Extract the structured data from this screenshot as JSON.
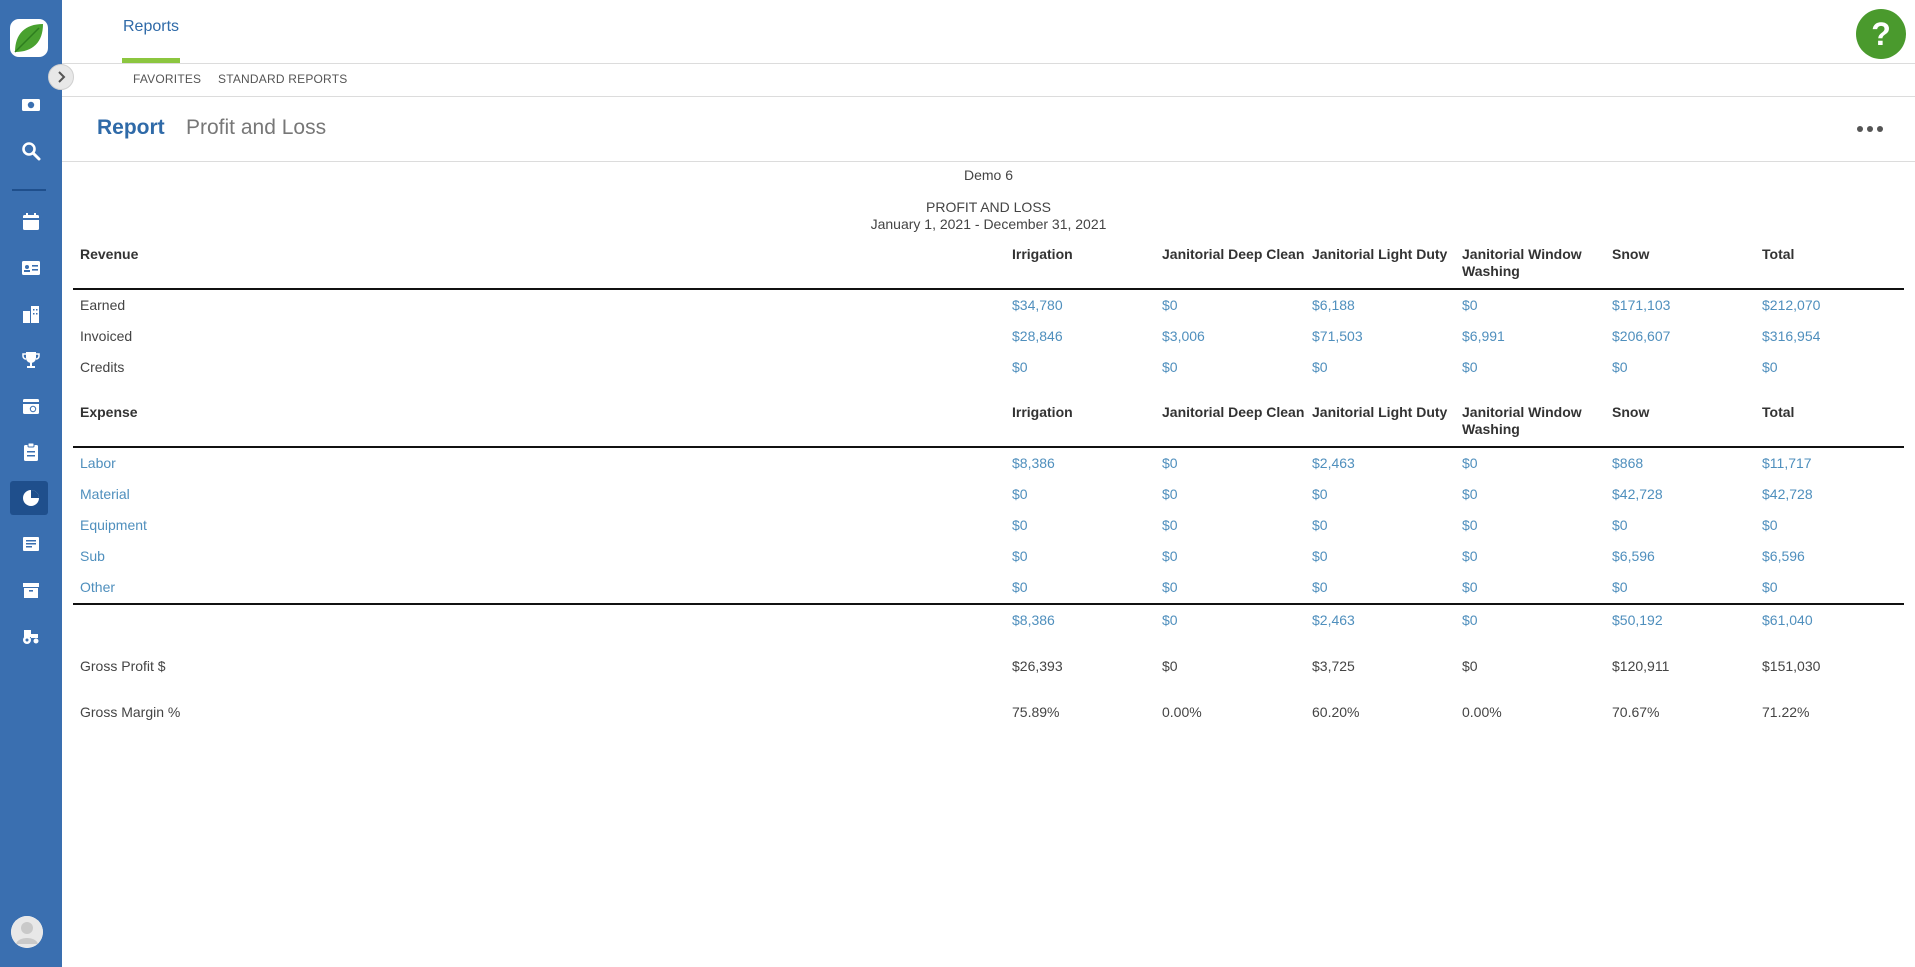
{
  "app": {
    "top_tab": "Reports",
    "help_label": "?"
  },
  "sub_nav": {
    "favorites": "FAVORITES",
    "standard_reports": "STANDARD REPORTS"
  },
  "report_header": {
    "label": "Report",
    "name": "Profit and Loss"
  },
  "report": {
    "company": "Demo 6",
    "title": "PROFIT AND LOSS",
    "dates": "January 1, 2021 - December 31, 2021",
    "columns": [
      "Irrigation",
      "Janitorial Deep Clean",
      "Janitorial Light Duty",
      "Janitorial Window Washing",
      "Snow",
      "Total"
    ],
    "revenue": {
      "heading": "Revenue",
      "rows": [
        {
          "label": "Earned",
          "values": [
            "$34,780",
            "$0",
            "$6,188",
            "$0",
            "$171,103",
            "$212,070"
          ]
        },
        {
          "label": "Invoiced",
          "values": [
            "$28,846",
            "$3,006",
            "$71,503",
            "$6,991",
            "$206,607",
            "$316,954"
          ]
        },
        {
          "label": "Credits",
          "values": [
            "$0",
            "$0",
            "$0",
            "$0",
            "$0",
            "$0"
          ]
        }
      ]
    },
    "expense": {
      "heading": "Expense",
      "rows": [
        {
          "label": "Labor",
          "values": [
            "$8,386",
            "$0",
            "$2,463",
            "$0",
            "$868",
            "$11,717"
          ]
        },
        {
          "label": "Material",
          "values": [
            "$0",
            "$0",
            "$0",
            "$0",
            "$42,728",
            "$42,728"
          ]
        },
        {
          "label": "Equipment",
          "values": [
            "$0",
            "$0",
            "$0",
            "$0",
            "$0",
            "$0"
          ]
        },
        {
          "label": "Sub",
          "values": [
            "$0",
            "$0",
            "$0",
            "$0",
            "$6,596",
            "$6,596"
          ]
        },
        {
          "label": "Other",
          "values": [
            "$0",
            "$0",
            "$0",
            "$0",
            "$0",
            "$0"
          ]
        }
      ],
      "totals": [
        "$8,386",
        "$0",
        "$2,463",
        "$0",
        "$50,192",
        "$61,040"
      ]
    },
    "gross_profit": {
      "label": "Gross Profit $",
      "values": [
        "$26,393",
        "$0",
        "$3,725",
        "$0",
        "$120,911",
        "$151,030"
      ]
    },
    "gross_margin": {
      "label": "Gross Margin %",
      "values": [
        "75.89%",
        "0.00%",
        "60.20%",
        "0.00%",
        "70.67%",
        "71.22%"
      ]
    }
  },
  "colors": {
    "sidebar": "#3a6fb0",
    "accent": "#2f6aa8",
    "tab_underline": "#8cc63f",
    "help": "#4a9a2d",
    "link": "#4f8fbd"
  },
  "sidebar_icons": [
    "dollar-bill-icon",
    "search-icon",
    "calendar-icon",
    "contact-card-icon",
    "buildings-icon",
    "trophy-icon",
    "calendar-clock-icon",
    "clipboard-icon",
    "pie-chart-icon",
    "invoice-icon",
    "archive-icon",
    "tractor-icon"
  ]
}
